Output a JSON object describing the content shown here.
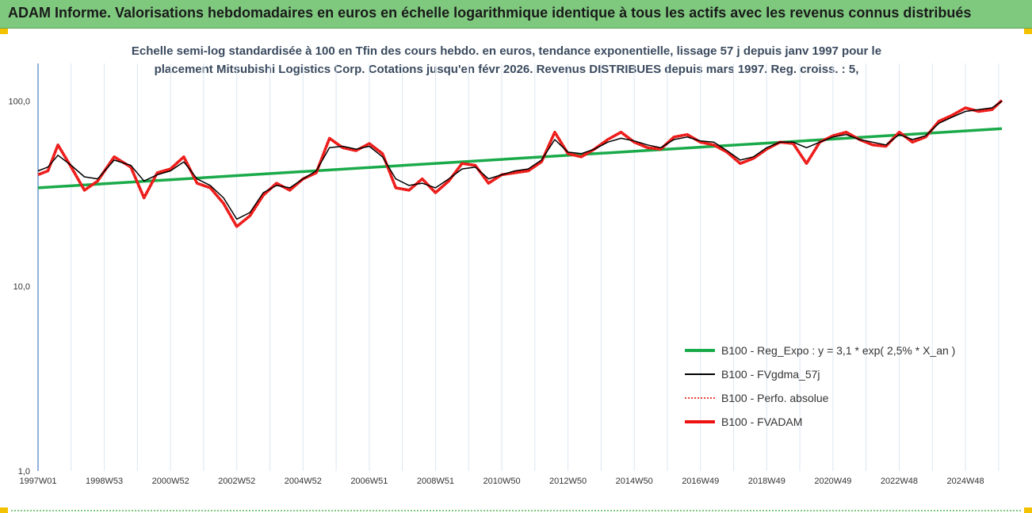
{
  "header": {
    "title": "ADAM Informe. Valorisations hebdomadaires en euros en échelle logarithmique identique à tous les actifs avec les revenus connus distribués"
  },
  "chart_data": {
    "type": "line",
    "title_line1": "Echelle semi-log standardisée à 100 en Tfin des cours hebdo. en euros, tendance exponentielle, lissage 57 j depuis janv 1997 pour le",
    "title_line2": "placement Mitsubishi Logistics Corp. Cotations jusqu'en févr 2026. Revenus DISTRIBUES depuis mars 1997. Reg. croiss. : 5,",
    "y_scale": "log",
    "ylim": [
      1,
      160
    ],
    "y_ticks": [
      {
        "value": 100,
        "label": "100,0"
      },
      {
        "value": 10,
        "label": "10,0"
      },
      {
        "value": 1,
        "label": "1,0"
      }
    ],
    "x_range": [
      1997.0,
      2026.1
    ],
    "x_ticks": [
      {
        "value": 1997.0,
        "label": "1997W01"
      },
      {
        "value": 1999.0,
        "label": "1998W53"
      },
      {
        "value": 2001.0,
        "label": "2000W52"
      },
      {
        "value": 2003.0,
        "label": "2002W52"
      },
      {
        "value": 2005.0,
        "label": "2004W52"
      },
      {
        "value": 2007.0,
        "label": "2006W51"
      },
      {
        "value": 2009.0,
        "label": "2008W51"
      },
      {
        "value": 2011.0,
        "label": "2010W50"
      },
      {
        "value": 2013.0,
        "label": "2012W50"
      },
      {
        "value": 2015.0,
        "label": "2014W50"
      },
      {
        "value": 2017.0,
        "label": "2016W49"
      },
      {
        "value": 2019.0,
        "label": "2018W49"
      },
      {
        "value": 2021.0,
        "label": "2020W49"
      },
      {
        "value": 2023.0,
        "label": "2022W48"
      },
      {
        "value": 2025.0,
        "label": "2024W48"
      }
    ],
    "grid_x": true,
    "grid_y": false,
    "legend_position": "bottom-right",
    "series": [
      {
        "name": "B100 - Reg_Expo : y = 3,1 * exp( 2,5% *  X_an )",
        "color": "#1aaa4a",
        "style": "solid-thick",
        "x": [
          1997.0,
          2026.1
        ],
        "values": [
          34,
          71
        ]
      },
      {
        "name": "B100 - FVgdma_57j",
        "color": "#000000",
        "style": "solid-thin",
        "x": [
          1997.0,
          1997.3,
          1997.6,
          1998.0,
          1998.4,
          1998.8,
          1999.3,
          1999.8,
          2000.2,
          2000.6,
          2001.0,
          2001.4,
          2001.8,
          2002.2,
          2002.6,
          2003.0,
          2003.4,
          2003.8,
          2004.2,
          2004.6,
          2005.0,
          2005.4,
          2005.8,
          2006.2,
          2006.6,
          2007.0,
          2007.4,
          2007.8,
          2008.2,
          2008.6,
          2009.0,
          2009.4,
          2009.8,
          2010.2,
          2010.6,
          2011.0,
          2011.4,
          2011.8,
          2012.2,
          2012.6,
          2013.0,
          2013.4,
          2013.8,
          2014.2,
          2014.6,
          2015.0,
          2015.4,
          2015.8,
          2016.2,
          2016.6,
          2017.0,
          2017.4,
          2017.8,
          2018.2,
          2018.6,
          2019.0,
          2019.4,
          2019.8,
          2020.2,
          2020.6,
          2021.0,
          2021.4,
          2021.8,
          2022.2,
          2022.6,
          2023.0,
          2023.4,
          2023.8,
          2024.2,
          2024.6,
          2025.0,
          2025.4,
          2025.8,
          2026.1
        ],
        "values": [
          42,
          44,
          51,
          45,
          39,
          38,
          48,
          45,
          37,
          40,
          42,
          47,
          38,
          35,
          30,
          23,
          25,
          32,
          35,
          34,
          38,
          42,
          56,
          57,
          55,
          57,
          50,
          38,
          35,
          36,
          34,
          38,
          43,
          44,
          38,
          40,
          42,
          43,
          48,
          62,
          53,
          52,
          55,
          60,
          63,
          61,
          58,
          56,
          62,
          64,
          61,
          60,
          54,
          48,
          50,
          56,
          60,
          60,
          56,
          60,
          64,
          66,
          62,
          60,
          58,
          66,
          62,
          65,
          76,
          82,
          88,
          90,
          92,
          100
        ]
      },
      {
        "name": "B100 - Perfo. absolue",
        "color": "#e8453c",
        "style": "dotted",
        "x": [
          1997.0,
          1997.3,
          1997.6,
          1998.0,
          1998.4,
          1998.8,
          1999.3,
          1999.8,
          2000.2,
          2000.6,
          2001.0,
          2001.4,
          2001.8,
          2002.2,
          2002.6,
          2003.0,
          2003.4,
          2003.8,
          2004.2,
          2004.6,
          2005.0,
          2005.4,
          2005.8,
          2006.2,
          2006.6,
          2007.0,
          2007.4,
          2007.8,
          2008.2,
          2008.6,
          2009.0,
          2009.4,
          2009.8,
          2010.2,
          2010.6,
          2011.0,
          2011.4,
          2011.8,
          2012.2,
          2012.6,
          2013.0,
          2013.4,
          2013.8,
          2014.2,
          2014.6,
          2015.0,
          2015.4,
          2015.8,
          2016.2,
          2016.6,
          2017.0,
          2017.4,
          2017.8,
          2018.2,
          2018.6,
          2019.0,
          2019.4,
          2019.8,
          2020.2,
          2020.6,
          2021.0,
          2021.4,
          2021.8,
          2022.2,
          2022.6,
          2023.0,
          2023.4,
          2023.8,
          2024.2,
          2024.6,
          2025.0,
          2025.4,
          2025.8,
          2026.1
        ],
        "values": [
          40,
          42,
          58,
          44,
          33,
          37,
          50,
          44,
          30,
          41,
          43,
          50,
          36,
          34,
          28,
          21,
          24,
          31,
          36,
          33,
          38,
          41,
          63,
          56,
          54,
          59,
          52,
          34,
          33,
          38,
          32,
          37,
          46,
          45,
          36,
          40,
          41,
          42,
          47,
          68,
          52,
          50,
          55,
          62,
          68,
          60,
          56,
          55,
          64,
          66,
          60,
          58,
          53,
          46,
          49,
          55,
          60,
          59,
          46,
          60,
          65,
          68,
          62,
          58,
          57,
          68,
          60,
          64,
          78,
          84,
          92,
          88,
          90,
          101
        ]
      },
      {
        "name": "B100 - FVADAM",
        "color": "#ee1111",
        "style": "solid-thick",
        "x": [
          1997.0,
          1997.3,
          1997.6,
          1998.0,
          1998.4,
          1998.8,
          1999.3,
          1999.8,
          2000.2,
          2000.6,
          2001.0,
          2001.4,
          2001.8,
          2002.2,
          2002.6,
          2003.0,
          2003.4,
          2003.8,
          2004.2,
          2004.6,
          2005.0,
          2005.4,
          2005.8,
          2006.2,
          2006.6,
          2007.0,
          2007.4,
          2007.8,
          2008.2,
          2008.6,
          2009.0,
          2009.4,
          2009.8,
          2010.2,
          2010.6,
          2011.0,
          2011.4,
          2011.8,
          2012.2,
          2012.6,
          2013.0,
          2013.4,
          2013.8,
          2014.2,
          2014.6,
          2015.0,
          2015.4,
          2015.8,
          2016.2,
          2016.6,
          2017.0,
          2017.4,
          2017.8,
          2018.2,
          2018.6,
          2019.0,
          2019.4,
          2019.8,
          2020.2,
          2020.6,
          2021.0,
          2021.4,
          2021.8,
          2022.2,
          2022.6,
          2023.0,
          2023.4,
          2023.8,
          2024.2,
          2024.6,
          2025.0,
          2025.4,
          2025.8,
          2026.1
        ],
        "values": [
          40,
          42,
          58,
          44,
          33,
          37,
          50,
          44,
          30,
          41,
          43,
          50,
          36,
          34,
          28,
          21,
          24,
          31,
          36,
          33,
          38,
          41,
          63,
          56,
          54,
          59,
          52,
          34,
          33,
          38,
          32,
          37,
          46,
          45,
          36,
          40,
          41,
          42,
          47,
          68,
          52,
          50,
          55,
          62,
          68,
          60,
          56,
          55,
          64,
          66,
          60,
          58,
          53,
          46,
          49,
          55,
          60,
          59,
          46,
          60,
          65,
          68,
          62,
          58,
          57,
          68,
          60,
          64,
          78,
          84,
          92,
          88,
          90,
          101
        ]
      }
    ]
  }
}
